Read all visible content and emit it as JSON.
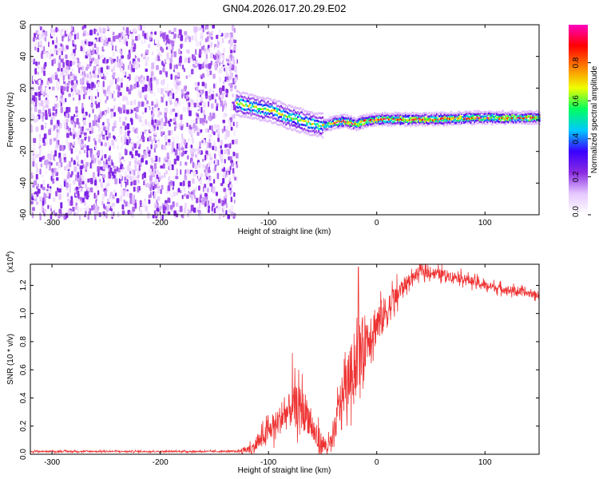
{
  "title": "GN04.2026.017.20.29.E02",
  "chart_data": [
    {
      "type": "heatmap",
      "title": "GN04.2026.017.20.29.E02",
      "xlabel": "Height of straight line (km)",
      "ylabel": "Frequency (Hz)",
      "xlim": [
        -320,
        150
      ],
      "ylim": [
        -60,
        60
      ],
      "xticks": [
        -300,
        -200,
        -100,
        0,
        100
      ],
      "yticks": [
        -60,
        -40,
        -20,
        0,
        20,
        40,
        60
      ],
      "colorbar": {
        "label": "Normalized spectral amplitude",
        "range": [
          0,
          1
        ],
        "ticks": [
          0.0,
          0.2,
          0.4,
          0.6,
          0.8
        ],
        "colormap": [
          "#ffffff",
          "#e6c8ff",
          "#8a2be2",
          "#3a00ff",
          "#00c8ff",
          "#00ff60",
          "#f0ff00",
          "#ff8000",
          "#ff0000",
          "#ff00c0"
        ]
      },
      "regions": [
        {
          "description": "scattered noise",
          "x": [
            -320,
            -130
          ],
          "y": [
            -60,
            60
          ],
          "amplitude": [
            0.0,
            0.25
          ]
        },
        {
          "description": "signal band",
          "x": [
            -130,
            150
          ],
          "amplitude": [
            0.3,
            1.0
          ]
        }
      ],
      "signal_center": [
        {
          "x": -130,
          "y": 11
        },
        {
          "x": -110,
          "y": 8
        },
        {
          "x": -95,
          "y": 6
        },
        {
          "x": -85,
          "y": 3
        },
        {
          "x": -70,
          "y": 0
        },
        {
          "x": -60,
          "y": -2
        },
        {
          "x": -50,
          "y": -3
        },
        {
          "x": -40,
          "y": -1
        },
        {
          "x": -30,
          "y": 0
        },
        {
          "x": -20,
          "y": -2
        },
        {
          "x": -10,
          "y": 0
        },
        {
          "x": 0,
          "y": 1
        },
        {
          "x": 20,
          "y": 1
        },
        {
          "x": 50,
          "y": 1
        },
        {
          "x": 90,
          "y": 2
        },
        {
          "x": 150,
          "y": 2
        }
      ]
    },
    {
      "type": "line",
      "xlabel": "Height of straight line (km)",
      "ylabel": "SNR (10 * v/v)",
      "y_multiplier": "(x10^4)",
      "y_multiplier_base": "(x10",
      "y_multiplier_exp": "4",
      "y_multiplier_close": ")",
      "xlim": [
        -320,
        150
      ],
      "ylim": [
        0,
        1.35
      ],
      "xticks": [
        -300,
        -200,
        -100,
        0,
        100
      ],
      "yticks": [
        0.0,
        0.2,
        0.4,
        0.6,
        0.8,
        1.0,
        1.2
      ],
      "ytick_labels": [
        "0.0",
        "0.2",
        "0.4",
        "0.6",
        "0.8",
        "1.0",
        "1.2"
      ],
      "color": "#ee3333",
      "envelope": [
        {
          "x": -320,
          "y": 0.02
        },
        {
          "x": -130,
          "y": 0.02
        },
        {
          "x": -115,
          "y": 0.04
        },
        {
          "x": -105,
          "y": 0.12
        },
        {
          "x": -95,
          "y": 0.2
        },
        {
          "x": -85,
          "y": 0.28
        },
        {
          "x": -75,
          "y": 0.35
        },
        {
          "x": -65,
          "y": 0.3
        },
        {
          "x": -55,
          "y": 0.1
        },
        {
          "x": -45,
          "y": 0.05
        },
        {
          "x": -40,
          "y": 0.1
        },
        {
          "x": -35,
          "y": 0.35
        },
        {
          "x": -25,
          "y": 0.55
        },
        {
          "x": -15,
          "y": 0.75
        },
        {
          "x": -5,
          "y": 0.88
        },
        {
          "x": 5,
          "y": 0.97
        },
        {
          "x": 15,
          "y": 1.08
        },
        {
          "x": 25,
          "y": 1.2
        },
        {
          "x": 40,
          "y": 1.3
        },
        {
          "x": 60,
          "y": 1.28
        },
        {
          "x": 80,
          "y": 1.25
        },
        {
          "x": 100,
          "y": 1.2
        },
        {
          "x": 120,
          "y": 1.17
        },
        {
          "x": 150,
          "y": 1.13
        }
      ],
      "noise_amplitude": [
        {
          "x": -320,
          "y": 0.01
        },
        {
          "x": -130,
          "y": 0.01
        },
        {
          "x": -110,
          "y": 0.1
        },
        {
          "x": -70,
          "y": 0.3
        },
        {
          "x": -45,
          "y": 0.1
        },
        {
          "x": -20,
          "y": 0.45
        },
        {
          "x": 0,
          "y": 0.3
        },
        {
          "x": 30,
          "y": 0.08
        },
        {
          "x": 150,
          "y": 0.05
        }
      ],
      "peaks": [
        {
          "x": -17,
          "y": 1.33
        },
        {
          "x": -78,
          "y": 0.72
        }
      ]
    }
  ]
}
